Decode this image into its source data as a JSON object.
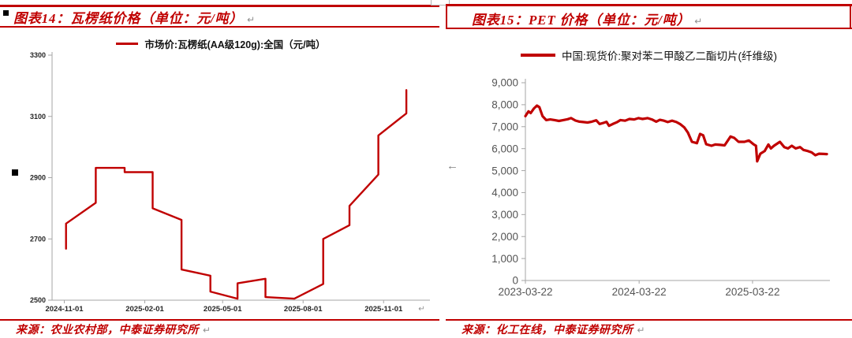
{
  "marks": {
    "pilcrow": "↵",
    "left_arrow": "←"
  },
  "colors": {
    "accent_red": "#C00000",
    "line_red": "#C00000",
    "axis_gray": "#a6a6a6",
    "left_tick_text": "#262626",
    "right_tick_text": "#555555",
    "mark_gray": "#8f8f8f"
  },
  "left_panel": {
    "title": "图表14：瓦楞纸价格（单位：元/吨）",
    "source": "来源：农业农村部，中泰证券研究所"
  },
  "right_panel": {
    "title": "图表15：PET 价格（单位：元/吨）",
    "source": "来源：化工在线，中泰证券研究所"
  },
  "chart_data": [
    {
      "type": "line",
      "title": "图表14：瓦楞纸价格（单位：元/吨）",
      "legend_position": "top",
      "grid": false,
      "xlabel": "",
      "ylabel": "",
      "ylim": [
        2500,
        3300
      ],
      "y_ticks": [
        2500,
        2700,
        2900,
        3100,
        3300
      ],
      "y_tick_labels": [
        "2500",
        "2700",
        "2900",
        "3100",
        "3300"
      ],
      "x_ticks": [
        "2024-11-01",
        "2025-02-01",
        "2025-05-01",
        "2025-08-01",
        "2025-11-01"
      ],
      "x_tick_labels": [
        "2024-11-01",
        "2025-02-01",
        "2025-05-01",
        "2025-08-01",
        "2025-11-01"
      ],
      "x_range": [
        "2024-10-18",
        "2025-12-24"
      ],
      "series": [
        {
          "name": "市场价:瓦楞纸(AA级120g):全国（元/吨）",
          "color": "#C00000",
          "points": [
            [
              "2024-11-03",
              2668
            ],
            [
              "2024-11-03",
              2750
            ],
            [
              "2024-12-07",
              2818
            ],
            [
              "2024-12-07",
              2932
            ],
            [
              "2025-01-09",
              2932
            ],
            [
              "2025-01-09",
              2918
            ],
            [
              "2025-02-10",
              2918
            ],
            [
              "2025-02-10",
              2800
            ],
            [
              "2025-03-15",
              2762
            ],
            [
              "2025-03-15",
              2600
            ],
            [
              "2025-04-17",
              2580
            ],
            [
              "2025-04-17",
              2528
            ],
            [
              "2025-05-18",
              2505
            ],
            [
              "2025-05-18",
              2555
            ],
            [
              "2025-06-19",
              2570
            ],
            [
              "2025-06-19",
              2510
            ],
            [
              "2025-07-22",
              2505
            ],
            [
              "2025-08-24",
              2553
            ],
            [
              "2025-08-24",
              2700
            ],
            [
              "2025-09-23",
              2745
            ],
            [
              "2025-09-23",
              2808
            ],
            [
              "2025-10-26",
              2910
            ],
            [
              "2025-10-26",
              3038
            ],
            [
              "2025-11-27",
              3110
            ],
            [
              "2025-11-27",
              3186
            ]
          ]
        }
      ]
    },
    {
      "type": "line",
      "title": "图表15：PET 价格（单位：元/吨）",
      "legend_position": "top",
      "grid": false,
      "xlabel": "",
      "ylabel": "",
      "ylim": [
        0,
        9000
      ],
      "y_ticks": [
        0,
        1000,
        2000,
        3000,
        4000,
        5000,
        6000,
        7000,
        8000,
        9000
      ],
      "y_tick_labels": [
        "0",
        "1,000",
        "2,000",
        "3,000",
        "4,000",
        "5,000",
        "6,000",
        "7,000",
        "8,000",
        "9,000"
      ],
      "x_ticks": [
        "2023-03-22",
        "2024-03-22",
        "2025-03-22"
      ],
      "x_tick_labels": [
        "2023-03-22",
        "2024-03-22",
        "2025-03-22"
      ],
      "x_range": [
        "2023-03-22",
        "2025-11-26"
      ],
      "series": [
        {
          "name": "中国:现货价:聚对苯二甲酸乙二酯切片(纤维级)",
          "color": "#C00000",
          "points": [
            [
              "2023-03-22",
              7480
            ],
            [
              "2023-04-01",
              7700
            ],
            [
              "2023-04-08",
              7620
            ],
            [
              "2023-04-18",
              7820
            ],
            [
              "2023-04-28",
              7960
            ],
            [
              "2023-05-06",
              7890
            ],
            [
              "2023-05-16",
              7480
            ],
            [
              "2023-05-28",
              7300
            ],
            [
              "2023-06-10",
              7330
            ],
            [
              "2023-06-24",
              7300
            ],
            [
              "2023-07-08",
              7260
            ],
            [
              "2023-07-22",
              7300
            ],
            [
              "2023-08-05",
              7340
            ],
            [
              "2023-08-16",
              7390
            ],
            [
              "2023-08-30",
              7280
            ],
            [
              "2023-09-12",
              7230
            ],
            [
              "2023-09-24",
              7210
            ],
            [
              "2023-10-08",
              7190
            ],
            [
              "2023-10-22",
              7230
            ],
            [
              "2023-11-05",
              7290
            ],
            [
              "2023-11-16",
              7120
            ],
            [
              "2023-11-28",
              7170
            ],
            [
              "2023-12-08",
              7220
            ],
            [
              "2023-12-16",
              7040
            ],
            [
              "2023-12-28",
              7120
            ],
            [
              "2024-01-10",
              7200
            ],
            [
              "2024-01-22",
              7300
            ],
            [
              "2024-02-06",
              7270
            ],
            [
              "2024-02-20",
              7350
            ],
            [
              "2024-03-06",
              7330
            ],
            [
              "2024-03-20",
              7390
            ],
            [
              "2024-04-02",
              7350
            ],
            [
              "2024-04-18",
              7390
            ],
            [
              "2024-05-02",
              7330
            ],
            [
              "2024-05-16",
              7230
            ],
            [
              "2024-05-28",
              7310
            ],
            [
              "2024-06-10",
              7270
            ],
            [
              "2024-06-22",
              7210
            ],
            [
              "2024-07-06",
              7270
            ],
            [
              "2024-07-20",
              7210
            ],
            [
              "2024-08-02",
              7110
            ],
            [
              "2024-08-14",
              6970
            ],
            [
              "2024-08-26",
              6730
            ],
            [
              "2024-09-08",
              6310
            ],
            [
              "2024-09-24",
              6250
            ],
            [
              "2024-10-04",
              6670
            ],
            [
              "2024-10-14",
              6610
            ],
            [
              "2024-10-24",
              6200
            ],
            [
              "2024-11-10",
              6130
            ],
            [
              "2024-11-22",
              6190
            ],
            [
              "2024-12-08",
              6170
            ],
            [
              "2024-12-22",
              6150
            ],
            [
              "2025-01-10",
              6550
            ],
            [
              "2025-01-22",
              6490
            ],
            [
              "2025-02-05",
              6310
            ],
            [
              "2025-02-24",
              6310
            ],
            [
              "2025-03-10",
              6370
            ],
            [
              "2025-03-26",
              6190
            ],
            [
              "2025-04-02",
              6130
            ],
            [
              "2025-04-06",
              5420
            ],
            [
              "2025-04-16",
              5770
            ],
            [
              "2025-04-30",
              5890
            ],
            [
              "2025-05-12",
              6190
            ],
            [
              "2025-05-20",
              6010
            ],
            [
              "2025-05-30",
              6130
            ],
            [
              "2025-06-18",
              6310
            ],
            [
              "2025-07-02",
              6070
            ],
            [
              "2025-07-14",
              6010
            ],
            [
              "2025-07-26",
              6130
            ],
            [
              "2025-08-08",
              6010
            ],
            [
              "2025-08-22",
              6070
            ],
            [
              "2025-09-02",
              5940
            ],
            [
              "2025-09-16",
              5890
            ],
            [
              "2025-09-28",
              5830
            ],
            [
              "2025-10-10",
              5700
            ],
            [
              "2025-10-22",
              5770
            ],
            [
              "2025-11-06",
              5760
            ],
            [
              "2025-11-16",
              5750
            ]
          ]
        }
      ]
    }
  ]
}
